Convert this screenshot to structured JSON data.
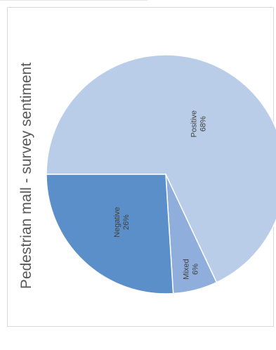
{
  "chart_data": {
    "type": "pie",
    "title": "Pedestrian mall - survey sentiment",
    "slices": [
      {
        "label": "Positive",
        "value": 68,
        "value_label": "68%",
        "color": "#b9cde8"
      },
      {
        "label": "Mixed",
        "value": 6,
        "value_label": "6%",
        "color": "#8faedb"
      },
      {
        "label": "Negative",
        "value": 26,
        "value_label": "26%",
        "color": "#5b8fc9"
      }
    ],
    "rotation": "text rotated 90 degrees counter-clockwise",
    "slice_border_color": "#ffffff"
  }
}
